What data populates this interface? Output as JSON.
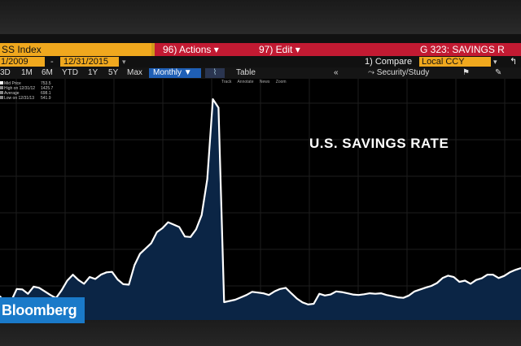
{
  "header": {
    "index_label": "SS Index",
    "actions_menu": "96) Actions ▾",
    "edit_menu": "97) Edit ▾",
    "graph_title": "G 323: SAVINGS R"
  },
  "dates": {
    "start": "1/2009",
    "dash": "-",
    "end": "12/31/2015",
    "dropdown_glyph": "▾",
    "compare_label": "1) Compare",
    "currency": "Local CCY",
    "currency_glyph": "▾",
    "nav_arrow": "↰"
  },
  "ranges": [
    "3D",
    "1M",
    "6M",
    "YTD",
    "1Y",
    "5Y",
    "Max"
  ],
  "frequency": "Monthly ▼",
  "chart_style_icon": "line-chart-icon",
  "table_label": "Table",
  "collapse_glyph": "«",
  "security_study": "⤳ Security/Study",
  "toolbar_tools": [
    "Track",
    "Annotate",
    "News",
    "Zoom"
  ],
  "legend": [
    {
      "label": "Mid Price",
      "value": "753.5"
    },
    {
      "label": "High on 12/31/12",
      "value": "1425.7"
    },
    {
      "label": "Average",
      "value": "698.1"
    },
    {
      "label": "Low on 12/31/13",
      "value": "541.9"
    }
  ],
  "brand": "Bloomberg",
  "colors": {
    "accent_orange": "#f0a81e",
    "menu_red": "#c21a32",
    "series_fill": "#0b2545",
    "series_line": "#ffffff",
    "brand_blue": "#1a7ac9"
  },
  "chart_data": {
    "type": "area",
    "title": "U.S. SAVINGS RATE",
    "xlabel": "",
    "ylabel": "",
    "grid": true,
    "ylim": [
      500,
      1450
    ],
    "series": [
      {
        "values": [
          600,
          560,
          580,
          630,
          628,
          610,
          640,
          635,
          620,
          605,
          592,
          625,
          665,
          690,
          668,
          652,
          680,
          672,
          690,
          700,
          702,
          670,
          650,
          648,
          730,
          778,
          800,
          822,
          868,
          885,
          910,
          900,
          890,
          850,
          848,
          880,
          940,
          1090,
          1425.7,
          1390,
          575,
          580,
          585,
          595,
          605,
          618,
          615,
          612,
          605,
          620,
          630,
          635,
          612,
          590,
          574,
          565,
          568,
          610,
          603,
          607,
          620,
          617,
          612,
          607,
          605,
          608,
          612,
          610,
          612,
          605,
          600,
          595,
          593,
          603,
          620,
          628,
          636,
          643,
          655,
          676,
          686,
          680,
          660,
          665,
          652,
          668,
          675,
          690,
          690,
          676,
          685,
          700,
          710,
          718
        ]
      }
    ]
  }
}
